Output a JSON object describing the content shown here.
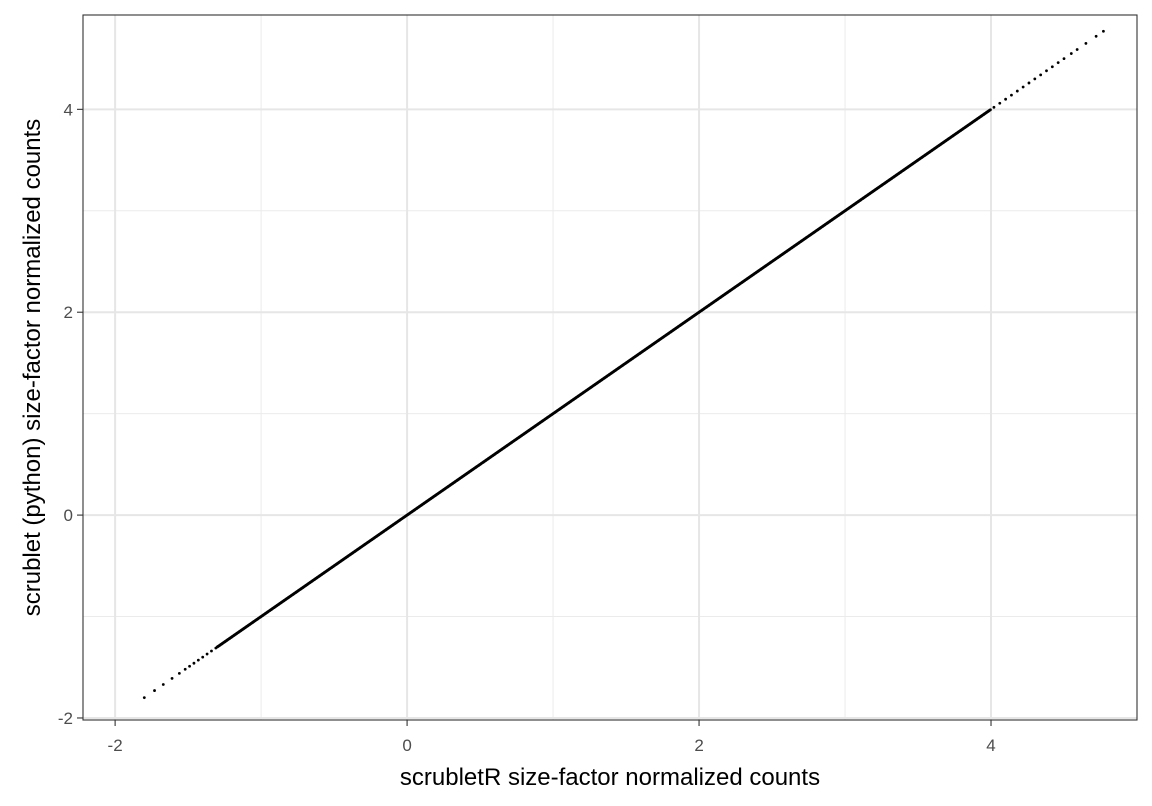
{
  "chart_data": {
    "type": "scatter",
    "title": "",
    "xlabel": "scrubletR size-factor normalized counts",
    "ylabel": "scrublet (python) size-factor normalized counts",
    "xlim": [
      -2.22,
      5.0
    ],
    "ylim": [
      -2.02,
      4.93
    ],
    "x_ticks": [
      -2,
      0,
      2,
      4
    ],
    "y_ticks": [
      -2,
      0,
      2,
      4
    ],
    "x_tick_labels": [
      "-2",
      "0",
      "2",
      "4"
    ],
    "y_tick_labels": [
      "-2",
      "0",
      "2",
      "4"
    ],
    "grid": true,
    "legend": "none",
    "point_color": "#000000",
    "point_series": {
      "relation": "y = x",
      "x_min": -1.8,
      "x_max": 4.77,
      "dense_range": [
        -1.3,
        4.0
      ],
      "sparse_points_low": [
        -1.8,
        -1.73,
        -1.67,
        -1.61,
        -1.56,
        -1.52,
        -1.49,
        -1.46,
        -1.43,
        -1.4,
        -1.37,
        -1.34,
        -1.31
      ],
      "sparse_points_high": [
        4.02,
        4.06,
        4.1,
        4.14,
        4.18,
        4.22,
        4.26,
        4.3,
        4.34,
        4.38,
        4.42,
        4.46,
        4.5,
        4.55,
        4.59,
        4.65,
        4.72,
        4.77
      ]
    }
  }
}
